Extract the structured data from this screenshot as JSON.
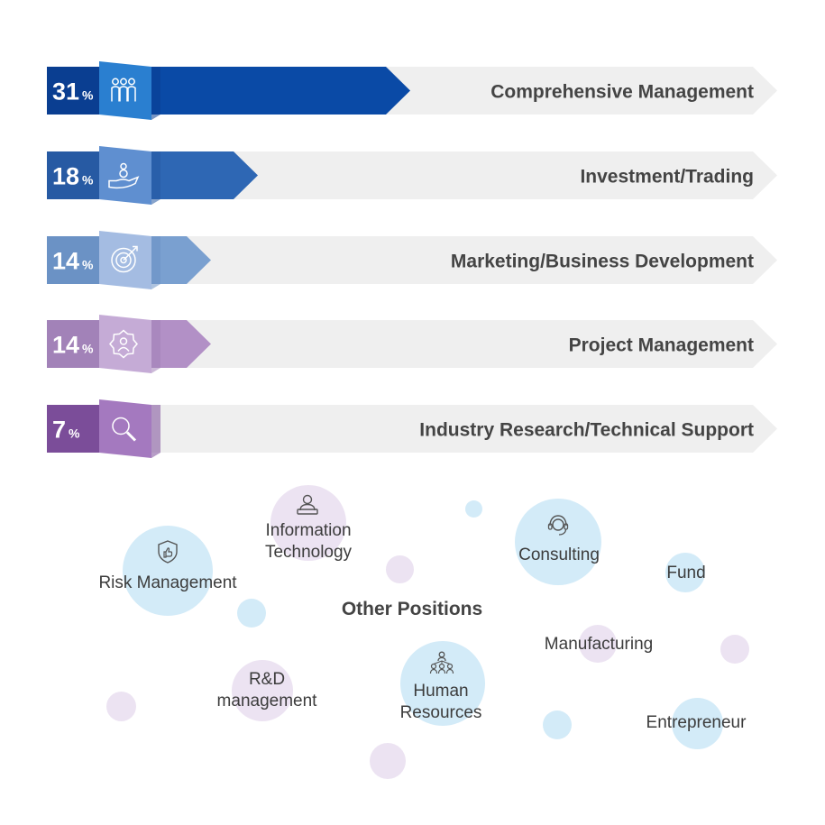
{
  "chart_data": {
    "type": "bar",
    "orientation": "horizontal",
    "categories": [
      "Comprehensive Management",
      "Investment/Trading",
      "Marketing/Business Development",
      "Project Management",
      "Industry Research/Technical Support"
    ],
    "values": [
      31,
      18,
      14,
      14,
      7
    ],
    "value_labels": [
      "31",
      "18",
      "14",
      "14",
      "7"
    ],
    "unit": "%",
    "icons": [
      "team-icon",
      "hand-money-icon",
      "target-icon",
      "gear-person-icon",
      "magnifier-icon"
    ],
    "colors": [
      "#0a4aa6",
      "#2e67b4",
      "#7aa0d0",
      "#b290c6",
      "#8a5aa8"
    ],
    "track_color": "#efefef"
  },
  "other_positions": {
    "title": "Other Positions",
    "items": [
      {
        "label": "Risk Management",
        "icon": "shield-thumb-icon",
        "color": "blue"
      },
      {
        "label": "Information\nTechnology",
        "icon": "person-laptop-icon",
        "color": "purple"
      },
      {
        "label": "Consulting",
        "icon": "headset-icon",
        "color": "blue"
      },
      {
        "label": "Fund",
        "icon": "",
        "color": "blue"
      },
      {
        "label": "Manufacturing",
        "icon": "",
        "color": "purple"
      },
      {
        "label": "R&D\nmanagement",
        "icon": "",
        "color": "purple"
      },
      {
        "label": "Human\nResources",
        "icon": "people-network-icon",
        "color": "blue"
      },
      {
        "label": "Entrepreneur",
        "icon": "",
        "color": "blue"
      }
    ]
  }
}
